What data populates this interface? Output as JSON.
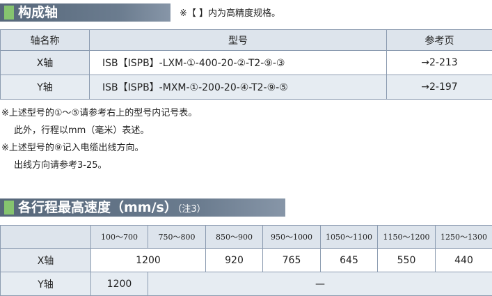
{
  "section1": {
    "title": "构成轴",
    "note": "※【 】内为高精度规格。"
  },
  "table1": {
    "header": [
      "轴名称",
      "型号",
      "参考页"
    ],
    "rows": [
      [
        "X轴",
        "ISB【ISPB】-LXM-①-400-20-②-T2-⑨-③",
        "→2-213"
      ],
      [
        "Y轴",
        "ISB【ISPB】-MXM-①-200-20-④-T2-⑨-⑤",
        "→2-197"
      ]
    ]
  },
  "notes": [
    "※上述型号的①～⑤请参考右上的型号内记号表。",
    "此外，行程以mm（毫米）表述。",
    "※上述型号的⑨记入电缆出线方向。",
    "出线方向请参考3-25。"
  ],
  "section2": {
    "title": "各行程最高速度（mm/s）",
    "title_note": "（注3）"
  },
  "table2": {
    "header": [
      "100～700",
      "750～800",
      "850～900",
      "950～1000",
      "1050～1100",
      "1150～1200",
      "1250～1300"
    ],
    "rows": [
      {
        "label": "X轴",
        "values": [
          1200,
          920,
          765,
          645,
          550,
          440
        ]
      },
      {
        "label": "Y轴",
        "values": [
          1200,
          "—"
        ]
      }
    ]
  }
}
